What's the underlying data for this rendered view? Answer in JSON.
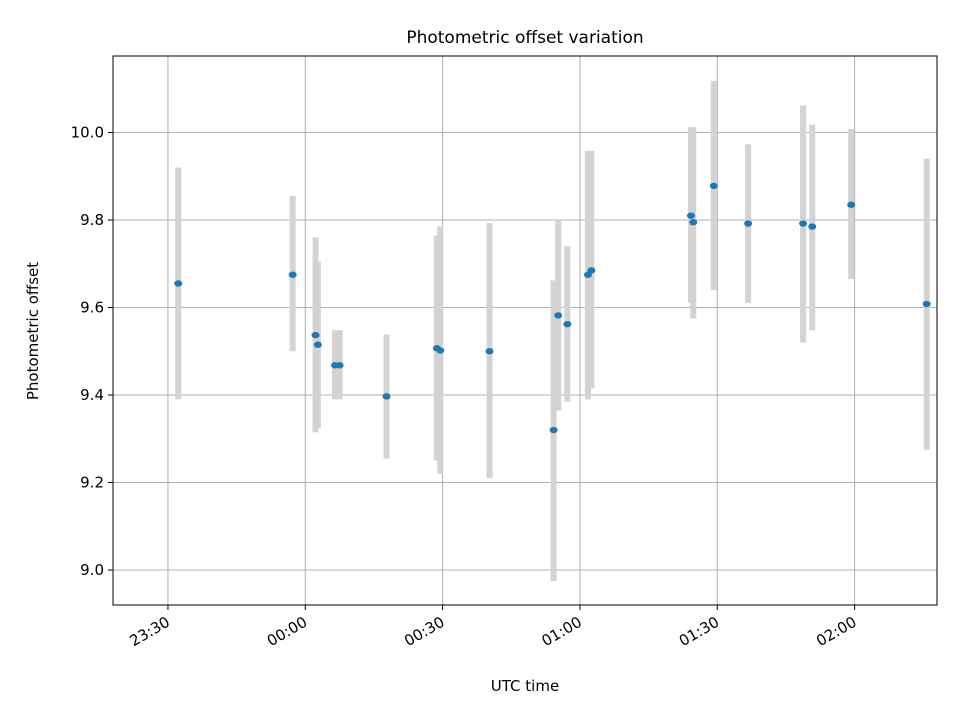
{
  "chart_data": {
    "type": "scatter",
    "title": "Photometric offset variation",
    "xlabel": "UTC time",
    "ylabel": "Photometric offset",
    "x_is_time": true,
    "xlim": [
      "23:18",
      "02:18"
    ],
    "ylim": [
      8.92,
      10.175
    ],
    "xticks": [
      {
        "label": "23:30",
        "time": "23:30"
      },
      {
        "label": "00:00",
        "time": "00:00"
      },
      {
        "label": "00:30",
        "time": "00:30"
      },
      {
        "label": "01:00",
        "time": "01:00"
      },
      {
        "label": "01:30",
        "time": "01:30"
      },
      {
        "label": "02:00",
        "time": "02:00"
      }
    ],
    "yticks": [
      9.0,
      9.2,
      9.4,
      9.6,
      9.8,
      10.0
    ],
    "grid": true,
    "colors": {
      "points": "#1f77b4",
      "errorbars": "#d3d3d3",
      "grid": "#b0b0b0"
    },
    "series": [
      {
        "points": [
          {
            "t": "23:32:15",
            "y": 9.655,
            "lo": 9.39,
            "hi": 9.92
          },
          {
            "t": "23:57:15",
            "y": 9.675,
            "lo": 9.5,
            "hi": 9.855
          },
          {
            "t": "00:02:15",
            "y": 9.537,
            "lo": 9.315,
            "hi": 9.76
          },
          {
            "t": "00:02:45",
            "y": 9.515,
            "lo": 9.325,
            "hi": 9.705
          },
          {
            "t": "00:06:30",
            "y": 9.468,
            "lo": 9.39,
            "hi": 9.548
          },
          {
            "t": "00:07:30",
            "y": 9.468,
            "lo": 9.39,
            "hi": 9.548
          },
          {
            "t": "00:17:45",
            "y": 9.397,
            "lo": 9.255,
            "hi": 9.538
          },
          {
            "t": "00:28:45",
            "y": 9.507,
            "lo": 9.25,
            "hi": 9.765
          },
          {
            "t": "00:29:30",
            "y": 9.502,
            "lo": 9.22,
            "hi": 9.785
          },
          {
            "t": "00:40:15",
            "y": 9.5,
            "lo": 9.21,
            "hi": 9.793
          },
          {
            "t": "00:54:15",
            "y": 9.32,
            "lo": 8.975,
            "hi": 9.662
          },
          {
            "t": "00:55:15",
            "y": 9.582,
            "lo": 9.365,
            "hi": 9.8
          },
          {
            "t": "00:57:15",
            "y": 9.562,
            "lo": 9.385,
            "hi": 9.74
          },
          {
            "t": "01:01:45",
            "y": 9.675,
            "lo": 9.39,
            "hi": 9.958
          },
          {
            "t": "01:02:30",
            "y": 9.685,
            "lo": 9.415,
            "hi": 9.958
          },
          {
            "t": "01:24:15",
            "y": 9.81,
            "lo": 9.61,
            "hi": 10.012
          },
          {
            "t": "01:24:45",
            "y": 9.795,
            "lo": 9.575,
            "hi": 10.012
          },
          {
            "t": "01:29:15",
            "y": 9.878,
            "lo": 9.64,
            "hi": 10.118
          },
          {
            "t": "01:36:45",
            "y": 9.792,
            "lo": 9.61,
            "hi": 9.973
          },
          {
            "t": "01:48:45",
            "y": 9.792,
            "lo": 9.52,
            "hi": 10.062
          },
          {
            "t": "01:50:45",
            "y": 9.785,
            "lo": 9.548,
            "hi": 10.018
          },
          {
            "t": "01:59:15",
            "y": 9.835,
            "lo": 9.665,
            "hi": 10.008
          },
          {
            "t": "02:15:45",
            "y": 9.608,
            "lo": 9.275,
            "hi": 9.94
          }
        ]
      }
    ]
  }
}
